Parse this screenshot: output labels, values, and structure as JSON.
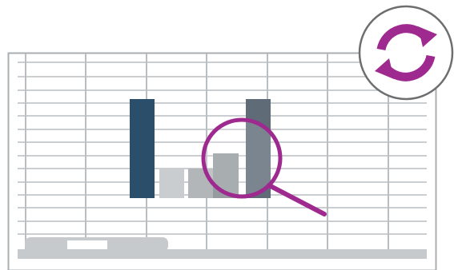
{
  "illustration": {
    "colors": {
      "grid": "#b9bec2",
      "grid_border": "#a9aeb2",
      "bar_primary": "#2b4f6b",
      "bar_light": "#c9cdd0",
      "bar_mid": "#b3b6b9",
      "bar_dark": "#959b9f",
      "bar_slate": "#5f6b77",
      "magnifier": "#9e2a8f",
      "refresh_ring": "#6d6e70",
      "refresh_arrows": "#9e2a8f",
      "scrollbar": "#c6cacc",
      "scrollbar_thumb": "#ffffff"
    },
    "icons": {
      "magnifier": "magnifying-glass-icon",
      "refresh": "refresh-icon"
    }
  }
}
